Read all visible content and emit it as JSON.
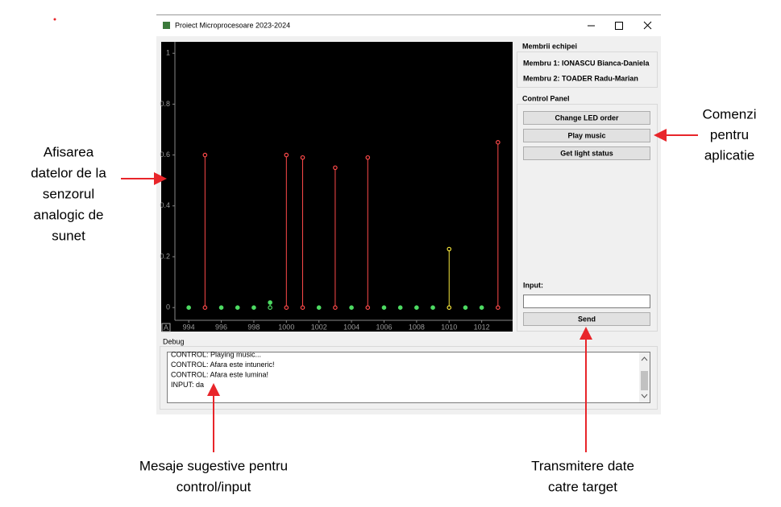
{
  "window": {
    "title": "Proiect Microprocesoare 2023-2024"
  },
  "chart_data": {
    "type": "stem",
    "x": [
      994,
      995,
      996,
      997,
      998,
      999,
      1000,
      1001,
      1002,
      1003,
      1004,
      1005,
      1006,
      1007,
      1008,
      1009,
      1010,
      1011,
      1012,
      1013
    ],
    "values": [
      0,
      0.6,
      0,
      0,
      0,
      0.02,
      0.6,
      0.59,
      0,
      0.55,
      0,
      0.59,
      0,
      0,
      0,
      0,
      0.23,
      0,
      0,
      0.65
    ],
    "colors": [
      "#4ddb62",
      "#ff4a4a",
      "#4ddb62",
      "#4ddb62",
      "#4ddb62",
      "#4ddb62",
      "#ff4a4a",
      "#ff4a4a",
      "#4ddb62",
      "#ff4a4a",
      "#4ddb62",
      "#ff4a4a",
      "#4ddb62",
      "#4ddb62",
      "#4ddb62",
      "#4ddb62",
      "#f5e63c",
      "#4ddb62",
      "#4ddb62",
      "#ff4a4a"
    ],
    "xlim": [
      993.15,
      1013.9
    ],
    "ylim": [
      -0.05,
      1.045
    ],
    "xticks": [
      994,
      996,
      998,
      1000,
      1002,
      1004,
      1006,
      1008,
      1010,
      1012
    ],
    "yticks": [
      0,
      0.2,
      0.4,
      0.6,
      0.8,
      1
    ],
    "corner_button": "A"
  },
  "team": {
    "title": "Membrii echipei",
    "members": [
      "Membru 1: IONASCU Bianca-Daniela",
      "Membru 2: TOADER Radu-Marian"
    ]
  },
  "control_panel": {
    "title": "Control Panel",
    "buttons": [
      "Change LED order",
      "Play music",
      "Get light status"
    ],
    "input_label": "Input:",
    "send": "Send"
  },
  "debug": {
    "title": "Debug",
    "lines": [
      "CONTROL: Playing music...",
      "CONTROL: Afara este intuneric!",
      "CONTROL: Afara este lumina!",
      "INPUT: da"
    ]
  },
  "annotations": [
    {
      "lines": [
        "Afisarea",
        "datelor de la",
        "senzorul",
        "analogic de",
        "sunet"
      ]
    },
    {
      "lines": [
        "Comenzi",
        "pentru",
        "aplicatie"
      ]
    },
    {
      "lines": [
        "Mesaje sugestive pentru",
        "control/input"
      ]
    },
    {
      "lines": [
        "Transmitere date",
        "catre target"
      ]
    }
  ]
}
